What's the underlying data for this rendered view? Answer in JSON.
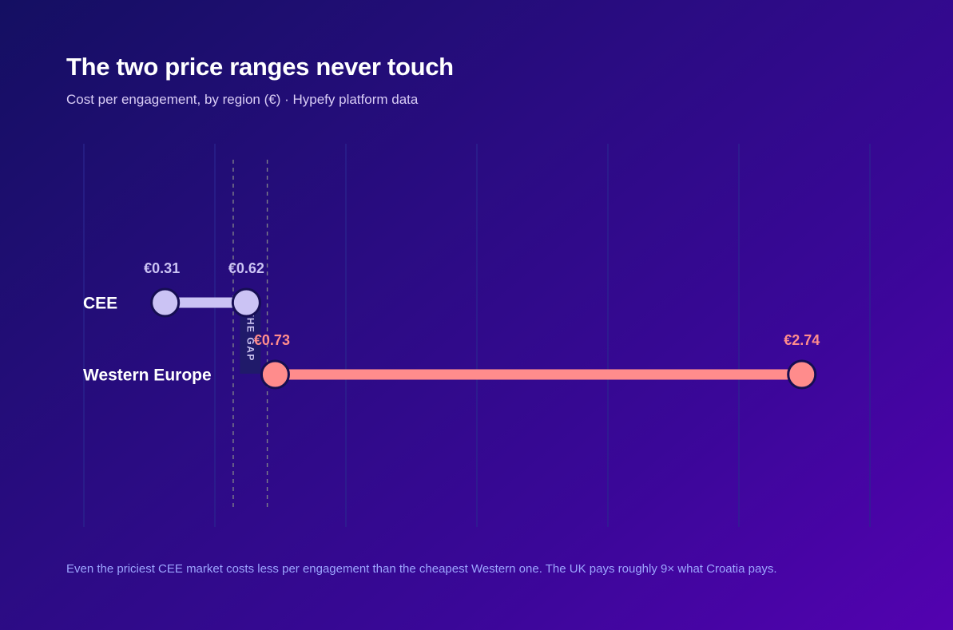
{
  "header": {
    "title": "The two price ranges never touch",
    "subtitle": "Cost per engagement, by region (€) · Hypefy platform data"
  },
  "footnote": "Even the priciest CEE market costs less per engagement than the cheapest Western one. The UK pays roughly 9× what Croatia pays.",
  "chart_data": {
    "type": "dumbbell",
    "title": "The two price ranges never touch",
    "subtitle": "Cost per engagement, by region (€) · Hypefy platform data",
    "xlim": [
      0,
      3
    ],
    "grid": true,
    "gap_annotation": {
      "label": "THE GAP",
      "from": 0.57,
      "to": 0.7
    },
    "series": [
      {
        "name": "CEE",
        "min": 0.31,
        "max": 0.62,
        "min_label": "€0.31",
        "max_label": "€0.62",
        "color": "#cbc3f4"
      },
      {
        "name": "Western Europe",
        "min": 0.73,
        "max": 2.74,
        "min_label": "€0.73",
        "max_label": "€2.74",
        "color": "#ff8c8c"
      }
    ],
    "colors": {
      "grid": "#2b2790",
      "gap_line": "#7f7f89",
      "gap_box": "#201a6a",
      "dot_outline": "#160e52"
    }
  }
}
